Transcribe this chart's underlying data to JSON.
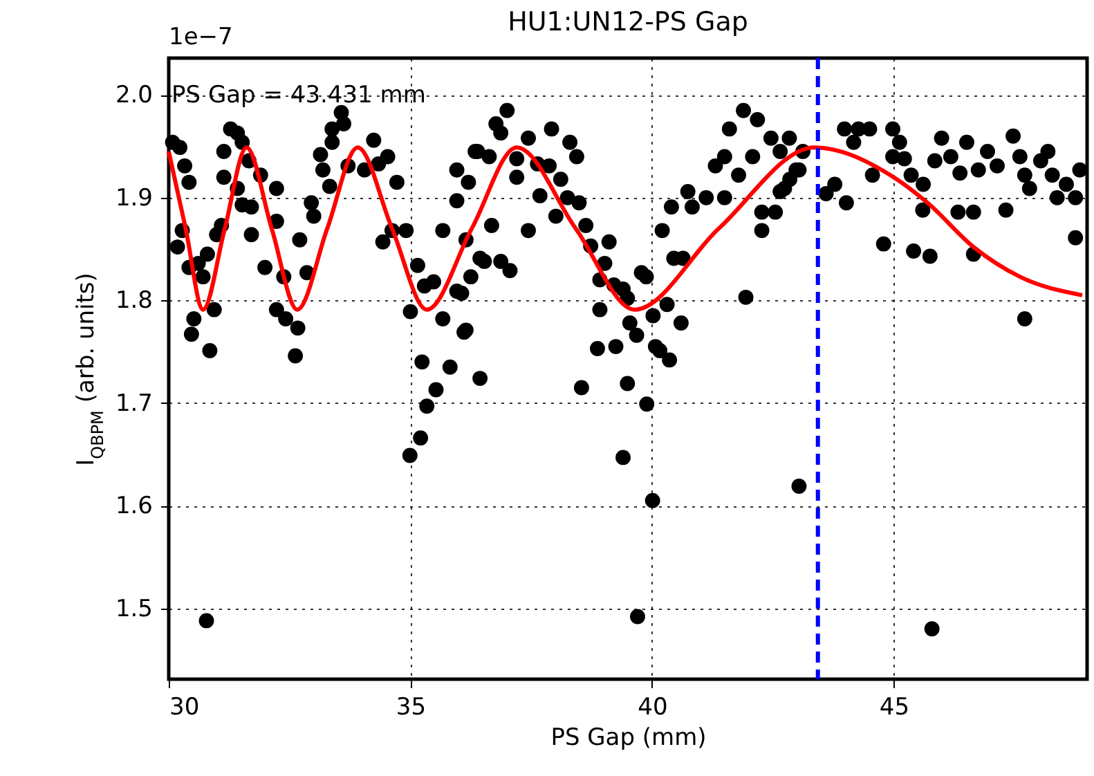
{
  "chart_data": {
    "type": "scatter",
    "title": "HU1:UN12-PS Gap",
    "xlabel": "PS Gap (mm)",
    "ylabel": "I$_{QBPM}$ (arb. units)",
    "annotations": [
      "1e−7",
      "PS Gap = 43.431 mm"
    ],
    "xlim": [
      30,
      49
    ],
    "xticks": [
      30,
      35,
      40,
      45
    ],
    "ylim": [
      1.431,
      2.036
    ],
    "yticks": [
      1.5,
      1.6,
      1.7,
      1.8,
      1.9,
      {
        "value": 2,
        "label": "2.0"
      }
    ],
    "grid": true,
    "ref_lines": [
      {
        "axis": "x",
        "value": 43.431,
        "color": "#0000ff",
        "line_style": "dashed"
      }
    ],
    "series": [
      {
        "marker": "circle",
        "color": "#000000",
        "x": [
          30.08,
          30.23,
          30.33,
          30.42,
          30.28,
          30.18,
          30.42,
          30.61,
          30.71,
          30.8,
          30.99,
          31.09,
          30.52,
          30.47,
          30.85,
          30.94,
          31.14,
          31.14,
          31.28,
          31.42,
          31.52,
          31.66,
          31.42,
          31.52,
          31.71,
          31.9,
          31.71,
          31.99,
          32.23,
          32.23,
          32.23,
          32.42,
          32.38,
          32.67,
          32.62,
          32.71,
          32.86,
          32.95,
          33.0,
          33.14,
          33.19,
          33.38,
          33.38,
          33.57,
          33.62,
          33.33,
          33.71,
          34.05,
          34.24,
          34.34,
          34.53,
          34.72,
          34.43,
          34.62,
          34.91,
          35.0,
          35.15,
          35.29,
          35.48,
          35.67,
          35.24,
          35.34,
          35.53,
          35.82,
          35.67,
          35.96,
          36.2,
          35.96,
          35.96,
          36.15,
          36.44,
          36.34,
          36.15,
          36.06,
          36.11,
          36.44,
          36.25,
          36.53,
          36.68,
          36.87,
          37.06,
          36.39,
          36.63,
          36.77,
          37.0,
          36.87,
          37.2,
          37.2,
          37.44,
          37.44,
          37.63,
          37.68,
          37.92,
          37.87,
          38.01,
          38.11,
          38.3,
          38.44,
          38.25,
          38.49,
          38.63,
          38.73,
          39.02,
          39.11,
          38.92,
          39.21,
          39.4,
          39.49,
          38.92,
          38.87,
          39.25,
          39.54,
          39.68,
          40.07,
          40.16,
          40.36,
          39.49,
          38.54,
          39.78,
          39.88,
          40.02,
          40.31,
          40.6,
          40.21,
          40.45,
          40.64,
          40.4,
          40.74,
          40.83,
          41.12,
          41.31,
          41.5,
          41.6,
          41.94,
          41.89,
          42.18,
          42.08,
          41.79,
          42.27,
          42.27,
          42.46,
          42.65,
          42.85,
          43.04,
          41.5,
          42.65,
          42.55,
          42.74,
          42.84,
          42.98,
          43.12,
          43.6,
          43.78,
          44.02,
          43.98,
          44.27,
          44.5,
          44.17,
          44.56,
          44.79,
          44.98,
          45.12,
          45.22,
          44.98,
          45.36,
          45.41,
          45.75,
          45.6,
          45.61,
          45.99,
          45.85,
          46.18,
          46.37,
          46.33,
          46.51,
          46.65,
          46.65,
          46.75,
          46.94,
          47.14,
          47.32,
          47.47,
          47.61,
          47.71,
          47.81,
          48.04,
          48.19,
          48.28,
          48.38,
          48.57,
          48.76,
          48.76,
          48.85,
          47.71,
          30.78,
          34.99,
          35.21,
          39.89,
          39.4,
          40.01,
          43.04,
          39.7,
          45.79
        ],
        "values": [
          1.954,
          1.949,
          1.931,
          1.915,
          1.868,
          1.852,
          1.832,
          1.836,
          1.823,
          1.845,
          1.864,
          1.873,
          1.782,
          1.767,
          1.751,
          1.791,
          1.945,
          1.92,
          1.967,
          1.963,
          1.954,
          1.936,
          1.909,
          1.893,
          1.891,
          1.922,
          1.864,
          1.832,
          1.909,
          1.877,
          1.791,
          1.782,
          1.823,
          1.773,
          1.746,
          1.859,
          1.827,
          1.895,
          1.882,
          1.942,
          1.927,
          1.967,
          1.954,
          1.983,
          1.972,
          1.911,
          1.931,
          1.927,
          1.956,
          1.933,
          1.94,
          1.915,
          1.857,
          1.868,
          1.868,
          1.789,
          1.834,
          1.814,
          1.818,
          1.782,
          1.74,
          1.697,
          1.713,
          1.735,
          1.868,
          1.927,
          1.915,
          1.897,
          1.809,
          1.771,
          1.841,
          1.945,
          1.859,
          1.807,
          1.769,
          1.724,
          1.823,
          1.838,
          1.873,
          1.838,
          1.829,
          1.945,
          1.94,
          1.972,
          1.985,
          1.963,
          1.938,
          1.92,
          1.958,
          1.868,
          1.933,
          1.902,
          1.967,
          1.931,
          1.882,
          1.918,
          1.954,
          1.94,
          1.9,
          1.895,
          1.873,
          1.853,
          1.836,
          1.857,
          1.82,
          1.815,
          1.811,
          1.802,
          1.791,
          1.753,
          1.755,
          1.778,
          1.766,
          1.755,
          1.751,
          1.742,
          1.719,
          1.715,
          1.827,
          1.823,
          1.785,
          1.796,
          1.778,
          1.868,
          1.841,
          1.841,
          1.891,
          1.906,
          1.891,
          1.9,
          1.931,
          1.94,
          1.967,
          1.803,
          1.985,
          1.976,
          1.94,
          1.922,
          1.886,
          1.868,
          1.958,
          1.945,
          1.918,
          1.927,
          1.9,
          1.906,
          1.886,
          1.909,
          1.958,
          1.927,
          1.945,
          1.904,
          1.913,
          1.895,
          1.967,
          1.967,
          1.967,
          1.954,
          1.922,
          1.855,
          1.967,
          1.954,
          1.938,
          1.94,
          1.922,
          1.848,
          1.843,
          1.888,
          1.913,
          1.958,
          1.936,
          1.94,
          1.924,
          1.886,
          1.954,
          1.886,
          1.845,
          1.927,
          1.945,
          1.931,
          1.888,
          1.96,
          1.94,
          1.922,
          1.909,
          1.936,
          1.945,
          1.922,
          1.9,
          1.913,
          1.9,
          1.861,
          1.927,
          1.782,
          1.488,
          1.649,
          1.666,
          1.699,
          1.647,
          1.605,
          1.619,
          1.492,
          1.48
        ]
      },
      {
        "type": "line",
        "color": "#ff0000",
        "x": [
          30.0,
          30.35,
          30.71,
          31.16,
          31.61,
          32.13,
          32.66,
          33.28,
          33.91,
          34.62,
          35.34,
          36.27,
          37.2,
          38.42,
          39.64,
          41.38,
          43.36,
          44.93,
          45.7,
          46.65,
          47.61,
          48.9
        ],
        "values": [
          1.945,
          1.87,
          1.791,
          1.87,
          1.949,
          1.87,
          1.791,
          1.87,
          1.949,
          1.87,
          1.791,
          1.87,
          1.949,
          1.87,
          1.791,
          1.87,
          1.949,
          1.922,
          1.895,
          1.852,
          1.823,
          1.805
        ]
      }
    ]
  }
}
